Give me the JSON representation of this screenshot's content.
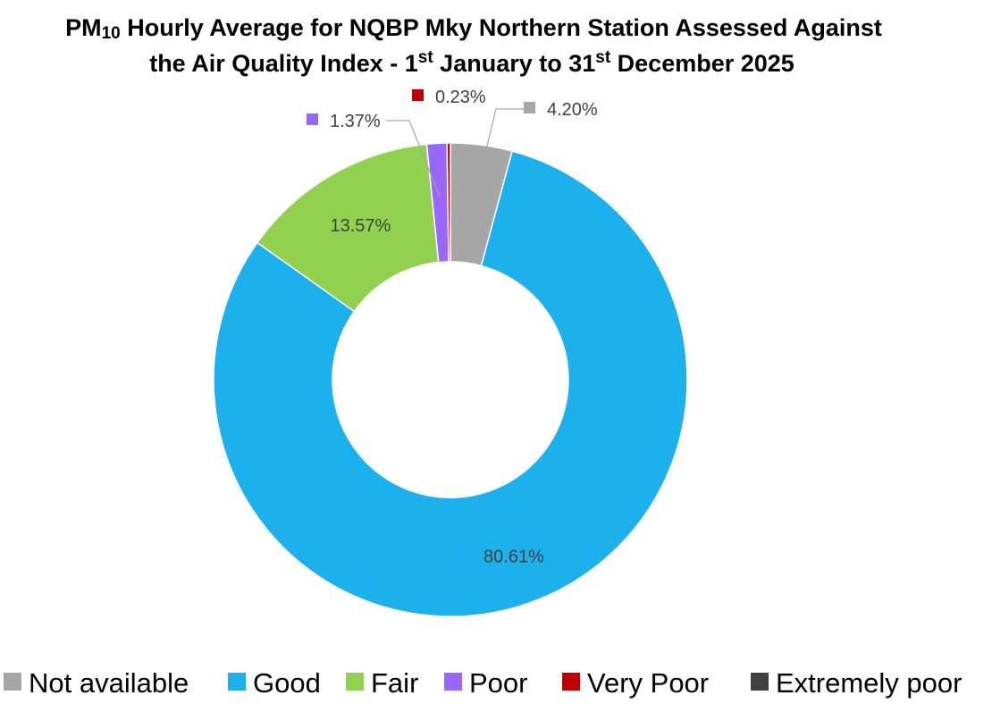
{
  "chart_data": {
    "type": "pie",
    "variant": "donut",
    "title": {
      "line1_prefix": "PM",
      "line1_subscript": "10",
      "line1_suffix": " Hourly Average for NQBP Mky Northern Station Assessed Against",
      "line2_prefix": "the Air Quality Index - 1",
      "line2_sup1": "st",
      "line2_middle": " January to 31",
      "line2_sup2": "st",
      "line2_suffix": " December 2025"
    },
    "slices": [
      {
        "name": "Not available",
        "value": 4.2,
        "label": "4.20%",
        "color": "#A6A6A6"
      },
      {
        "name": "Good",
        "value": 80.61,
        "label": "80.61%",
        "color": "#1CB0EC"
      },
      {
        "name": "Fair",
        "value": 13.57,
        "label": "13.57%",
        "color": "#92D050"
      },
      {
        "name": "Poor",
        "value": 1.37,
        "label": "1.37%",
        "color": "#9966FF"
      },
      {
        "name": "Very Poor",
        "value": 0.23,
        "label": "0.23%",
        "color": "#C00000"
      },
      {
        "name": "Extremely poor",
        "value": 0.0,
        "label": "",
        "color": "#404040"
      }
    ],
    "legend": {
      "position": "bottom",
      "items": [
        "Not available",
        "Good",
        "Fair",
        "Poor",
        "Very Poor",
        "Extremely poor"
      ]
    }
  }
}
